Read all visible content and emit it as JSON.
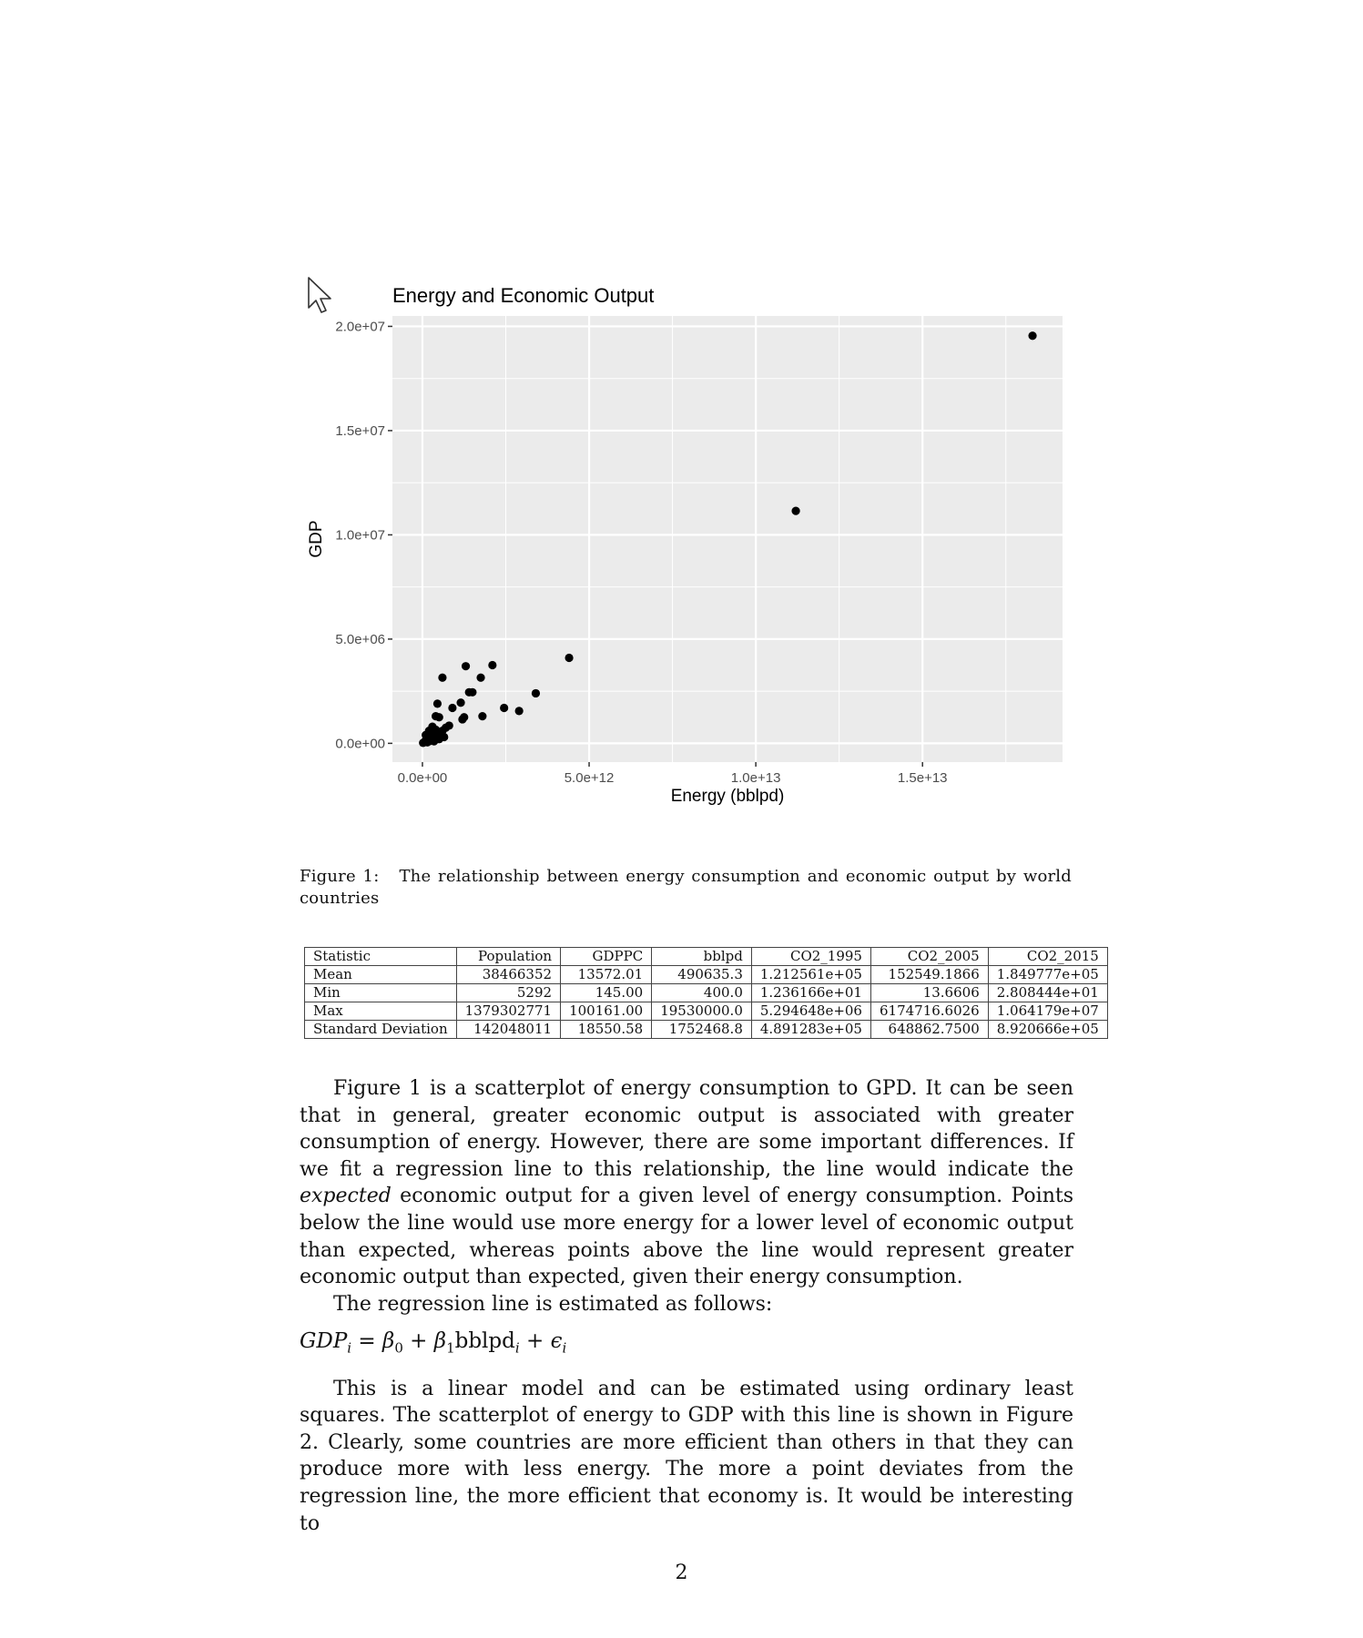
{
  "chart_data": {
    "type": "scatter",
    "title": "Energy and Economic Output",
    "xlabel": "Energy (bblpd)",
    "ylabel": "GDP",
    "xlim": [
      -900000000000.0,
      19200000000000.0
    ],
    "ylim": [
      -900000.0,
      20500000.0
    ],
    "x_ticks": [
      0,
      5000000000000.0,
      10000000000000.0,
      15000000000000.0
    ],
    "x_tick_labels": [
      "0.0e+00",
      "5.0e+12",
      "1.0e+13",
      "1.5e+13"
    ],
    "y_ticks": [
      0,
      5000000.0,
      10000000.0,
      15000000.0,
      20000000.0
    ],
    "y_tick_labels": [
      "0.0e+00",
      "5.0e+06",
      "1.0e+07",
      "1.5e+07",
      "2.0e+07"
    ],
    "grid": true,
    "legend": "none",
    "point_color": "#000000",
    "panel_color": "#EBEBEB",
    "points": [
      {
        "x": 18300000000000.0,
        "y": 19550000.0
      },
      {
        "x": 11200000000000.0,
        "y": 11150000.0
      },
      {
        "x": 4400000000000.0,
        "y": 4100000.0
      },
      {
        "x": 3400000000000.0,
        "y": 2400000.0
      },
      {
        "x": 2900000000000.0,
        "y": 1550000.0
      },
      {
        "x": 2450000000000.0,
        "y": 1700000.0
      },
      {
        "x": 2100000000000.0,
        "y": 3750000.0
      },
      {
        "x": 1800000000000.0,
        "y": 1300000.0
      },
      {
        "x": 1750000000000.0,
        "y": 3150000.0
      },
      {
        "x": 1500000000000.0,
        "y": 2450000.0
      },
      {
        "x": 1400000000000.0,
        "y": 2450000.0
      },
      {
        "x": 1300000000000.0,
        "y": 3700000.0
      },
      {
        "x": 1250000000000.0,
        "y": 1250000.0
      },
      {
        "x": 1150000000000.0,
        "y": 1950000.0
      },
      {
        "x": 1200000000000.0,
        "y": 1150000.0
      },
      {
        "x": 900000000000.0,
        "y": 1700000.0
      },
      {
        "x": 800000000000.0,
        "y": 850000.0
      },
      {
        "x": 600000000000.0,
        "y": 3150000.0
      },
      {
        "x": 450000000000.0,
        "y": 1900000.0
      },
      {
        "x": 400000000000.0,
        "y": 1300000.0
      },
      {
        "x": 500000000000.0,
        "y": 1250000.0
      },
      {
        "x": 700000000000.0,
        "y": 750000.0
      },
      {
        "x": 650000000000.0,
        "y": 300000.0
      },
      {
        "x": 550000000000.0,
        "y": 550000.0
      },
      {
        "x": 300000000000.0,
        "y": 800000.0
      },
      {
        "x": 350000000000.0,
        "y": 550000.0
      },
      {
        "x": 250000000000.0,
        "y": 450000.0
      },
      {
        "x": 200000000000.0,
        "y": 300000.0
      },
      {
        "x": 150000000000.0,
        "y": 200000.0
      },
      {
        "x": 100000000000.0,
        "y": 150000.0
      },
      {
        "x": 120000000000.0,
        "y": 350000.0
      },
      {
        "x": 300000000000.0,
        "y": 250000.0
      },
      {
        "x": 450000000000.0,
        "y": 400000.0
      },
      {
        "x": 50000000000.0,
        "y": 50000.0
      },
      {
        "x": 20000000000.0,
        "y": 20000.0
      },
      {
        "x": 80000000000.0,
        "y": 100000.0
      },
      {
        "x": 200000000000.0,
        "y": 600000.0
      },
      {
        "x": 400000000000.0,
        "y": 650000.0
      },
      {
        "x": 600000000000.0,
        "y": 600000.0
      },
      {
        "x": 350000000000.0,
        "y": 100000.0
      },
      {
        "x": 250000000000.0,
        "y": 120000.0
      },
      {
        "x": 150000000000.0,
        "y": 50000.0
      },
      {
        "x": 500000000000.0,
        "y": 200000.0
      },
      {
        "x": 100000000000.0,
        "y": 400000.0
      }
    ]
  },
  "caption": {
    "label": "Figure 1:",
    "text": "The relationship between energy consumption and economic output by world countries"
  },
  "table": {
    "headers": [
      "Statistic",
      "Population",
      "GDPPC",
      "bblpd",
      "CO2_1995",
      "CO2_2005",
      "CO2_2015"
    ],
    "rows": [
      [
        "Mean",
        "38466352",
        "13572.01",
        "490635.3",
        "1.212561e+05",
        "152549.1866",
        "1.849777e+05"
      ],
      [
        "Min",
        "5292",
        "145.00",
        "400.0",
        "1.236166e+01",
        "13.6606",
        "2.808444e+01"
      ],
      [
        "Max",
        "1379302771",
        "100161.00",
        "19530000.0",
        "5.294648e+06",
        "6174716.6026",
        "1.064179e+07"
      ],
      [
        "Standard Deviation",
        "142048011",
        "18550.58",
        "1752468.8",
        "4.891283e+05",
        "648862.7500",
        "8.920666e+05"
      ]
    ]
  },
  "body": {
    "p1_a": "Figure 1 is a scatterplot of energy consumption to GPD. It can be seen that in general, greater economic output is associated with greater consumption of energy. However, there are some important differences. If we fit a regression line to this relationship, the line would indicate the ",
    "p1_em": "expected",
    "p1_b": " economic output for a given level of energy consumption. Points below the line would use more energy for a lower level of economic output than expected, whereas points above the line would represent greater economic output than expected, given their energy consumption.",
    "p2": "The regression line is estimated as follows:",
    "p3": "This is a linear model and can be estimated using ordinary least squares. The scatterplot of energy to GDP with this line is shown in Figure 2. Clearly, some countries are more efficient than others in that they can produce more with less energy. The more a point deviates from the regression line, the more efficient that economy is. It would be interesting to"
  },
  "equation": {
    "lhs": "GDP",
    "sub_i": "i",
    "eq": " = ",
    "beta0": "β",
    "sub0": "0",
    "plus1": " + ",
    "beta1": "β",
    "sub1": "1",
    "var": "bblpd",
    "plus2": " + ",
    "eps": "ϵ"
  },
  "page_number": "2",
  "cursor_icon": "arrow-cursor-icon"
}
